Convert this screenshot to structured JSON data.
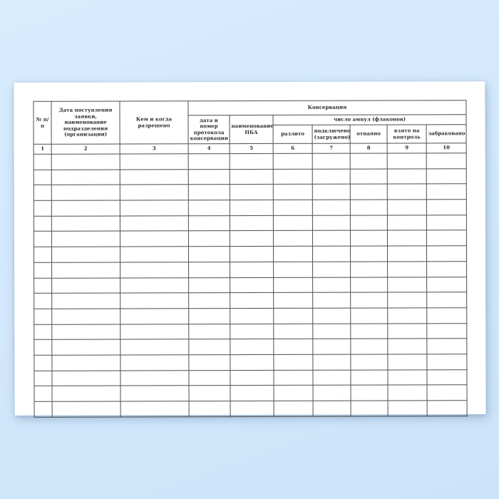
{
  "page": {
    "background_color": "#d3e8fc",
    "paper_color": "#ffffff",
    "border_color": "#4e4e4e",
    "text_color": "#2a2a2a"
  },
  "table": {
    "headers": {
      "num": "№ п/п",
      "date_request": "Дата поступления заявки, наименование подразделения (организации)",
      "authorized_by": "Кем и когда разрешено",
      "conservation_group": "Консервация",
      "protocol": "дата и номер протокола консервации",
      "pba_name": "наименование ПБА",
      "ampoules_group": "число ампул (флаконов)",
      "poured": "разлито",
      "connected": "подключено (загружено)",
      "sealed": "отпаяно",
      "taken_control": "взято на контроль",
      "rejected": "забраковано"
    },
    "column_numbers": [
      "1",
      "2",
      "3",
      "4",
      "5",
      "6",
      "7",
      "8",
      "9",
      "10"
    ],
    "empty_row_count": 17,
    "columns_per_row": 10
  }
}
